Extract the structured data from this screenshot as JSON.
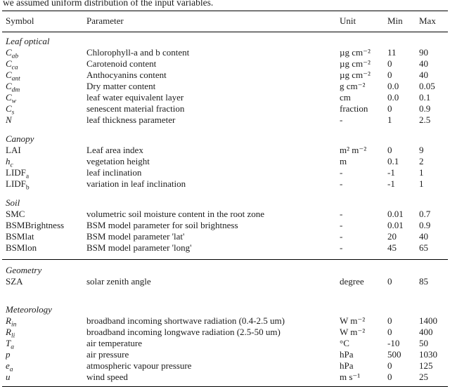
{
  "intro": "we assumed uniform distribution of the input variables.",
  "table": {
    "headers": [
      "Symbol",
      "Parameter",
      "Unit",
      "Min",
      "Max"
    ],
    "sections": [
      {
        "title": "Leaf optical",
        "rule_before": false,
        "rows": [
          {
            "symbol": "C",
            "sub": "ab",
            "italic": true,
            "parameter": "Chlorophyll-a and b content",
            "unit": "µg cm⁻²",
            "min": "11",
            "max": "90"
          },
          {
            "symbol": "C",
            "sub": "ca",
            "italic": true,
            "parameter": "Carotenoid content",
            "unit": "µg cm⁻²",
            "min": "0",
            "max": "40"
          },
          {
            "symbol": "C",
            "sub": "ant",
            "italic": true,
            "parameter": "Anthocyanins content",
            "unit": "µg cm⁻²",
            "min": "0",
            "max": "40"
          },
          {
            "symbol": "C",
            "sub": "dm",
            "italic": true,
            "parameter": "Dry matter content",
            "unit": "g cm⁻²",
            "min": "0.0",
            "max": "0.05"
          },
          {
            "symbol": "C",
            "sub": "w",
            "italic": true,
            "parameter": "leaf water equivalent layer",
            "unit": "cm",
            "min": "0.0",
            "max": "0.1"
          },
          {
            "symbol": "C",
            "sub": "s",
            "italic": true,
            "parameter": "senescent material fraction",
            "unit": "fraction",
            "min": "0",
            "max": "0.9"
          },
          {
            "symbol": "N",
            "italic": true,
            "parameter": "leaf thickness parameter",
            "unit": "-",
            "min": "1",
            "max": "2.5"
          }
        ]
      },
      {
        "title": "Canopy",
        "rule_before": false,
        "rows": [
          {
            "symbol": "LAI",
            "italic": false,
            "parameter": "Leaf area index",
            "unit": "m² m⁻²",
            "min": "0",
            "max": "9"
          },
          {
            "symbol": "h",
            "sub": "c",
            "italic": true,
            "parameter": "vegetation height",
            "unit": "m",
            "min": "0.1",
            "max": "2"
          },
          {
            "symbol": "LIDF",
            "sub": "a",
            "italic": false,
            "parameter": "leaf inclination",
            "unit": "-",
            "min": "-1",
            "max": "1"
          },
          {
            "symbol": "LIDF",
            "sub": "b",
            "italic": false,
            "parameter": "variation in leaf inclination",
            "unit": "-",
            "min": "-1",
            "max": "1"
          }
        ]
      },
      {
        "title": "Soil",
        "rule_before": false,
        "rows": [
          {
            "symbol": "SMC",
            "italic": false,
            "parameter": "volumetric soil moisture content in the root zone",
            "unit": "-",
            "min": "0.01",
            "max": "0.7"
          },
          {
            "symbol": "BSMBrightness",
            "italic": false,
            "parameter": "BSM model parameter for soil brightness",
            "unit": "-",
            "min": "0.01",
            "max": "0.9"
          },
          {
            "symbol": "BSMlat",
            "italic": false,
            "parameter": "BSM model parameter 'lat'",
            "unit": "-",
            "min": "20",
            "max": "40"
          },
          {
            "symbol": "BSMlon",
            "italic": false,
            "parameter": "BSM model parameter 'long'",
            "unit": "-",
            "min": "45",
            "max": "65"
          }
        ]
      },
      {
        "title": "Geometry",
        "rule_before": true,
        "rows": [
          {
            "symbol": "SZA",
            "italic": false,
            "parameter": "solar zenith angle",
            "unit": "degree",
            "min": "0",
            "max": "85"
          }
        ]
      },
      {
        "title": "Meteorology",
        "rule_before": false,
        "rows": [
          {
            "symbol": "R",
            "sub": "in",
            "italic": true,
            "parameter": "broadband incoming shortwave radiation (0.4-2.5 um)",
            "unit": "W m⁻²",
            "min": "0",
            "max": "1400"
          },
          {
            "symbol": "R",
            "sub": "li",
            "italic": true,
            "parameter": "broadband incoming longwave radiation (2.5-50 um)",
            "unit": "W m⁻²",
            "min": "0",
            "max": "400"
          },
          {
            "symbol": "T",
            "sub": "a",
            "italic": true,
            "parameter": "air temperature",
            "unit": "°C",
            "min": "-10",
            "max": "50"
          },
          {
            "symbol": "p",
            "italic": true,
            "parameter": "air pressure",
            "unit": "hPa",
            "min": "500",
            "max": "1030"
          },
          {
            "symbol": "e",
            "sub": "a",
            "italic": true,
            "parameter": "atmospheric vapour pressure",
            "unit": "hPa",
            "min": "0",
            "max": "125"
          },
          {
            "symbol": "u",
            "italic": true,
            "parameter": "wind speed",
            "unit": "m s⁻¹",
            "min": "0",
            "max": "25"
          }
        ]
      }
    ]
  }
}
